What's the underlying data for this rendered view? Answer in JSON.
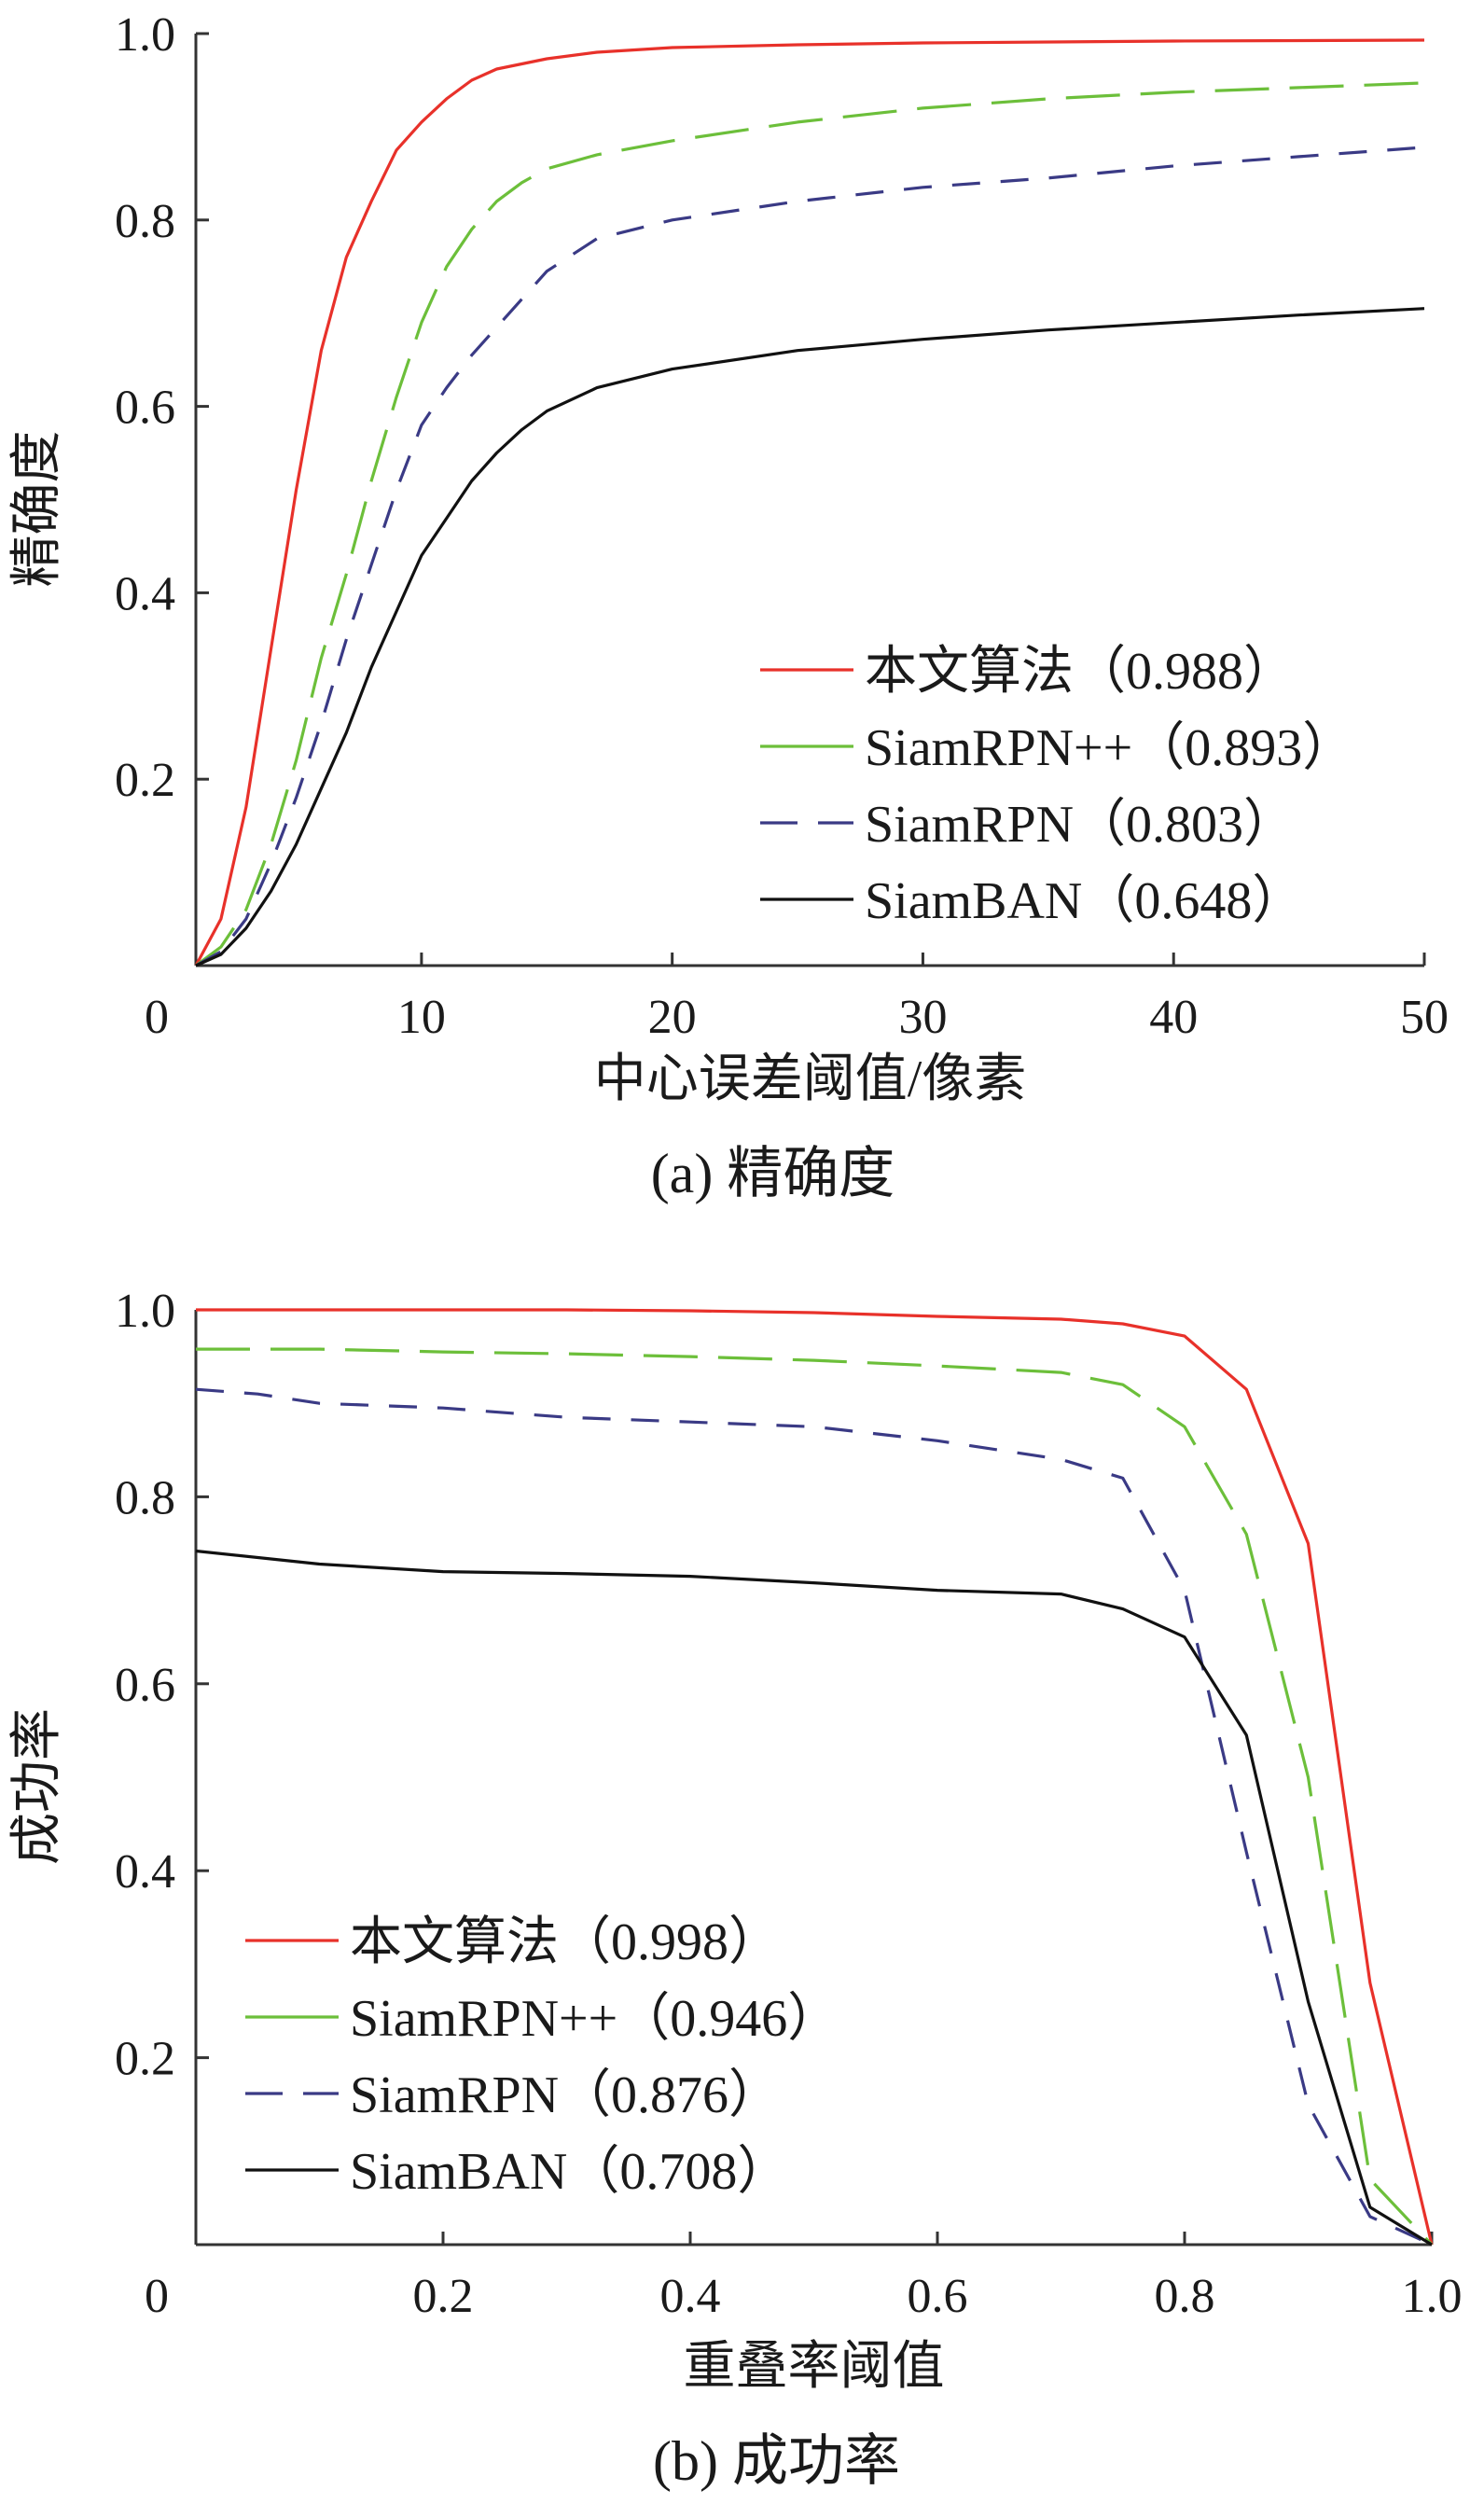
{
  "chart_data": [
    {
      "type": "line",
      "caption": "(a)  精确度",
      "xlabel": "中心误差阈值/像素",
      "ylabel": "精确度",
      "xlim": [
        1,
        50
      ],
      "ylim": [
        0,
        1.0
      ],
      "x_ticks": [
        0,
        10,
        20,
        30,
        40,
        50
      ],
      "x_tick_labels": [
        "0",
        "10",
        "20",
        "30",
        "40",
        "50"
      ],
      "y_ticks": [
        0.2,
        0.4,
        0.6,
        0.8,
        1.0
      ],
      "y_tick_labels": [
        "0.2",
        "0.4",
        "0.6",
        "0.8",
        "1.0"
      ],
      "legend_position": "lower-right",
      "grid": false,
      "series": [
        {
          "name": "本文算法（0.988）",
          "color": "#e8312a",
          "dash": "solid",
          "points": [
            [
              1,
              0.0
            ],
            [
              2,
              0.05
            ],
            [
              3,
              0.17
            ],
            [
              4,
              0.34
            ],
            [
              5,
              0.51
            ],
            [
              6,
              0.66
            ],
            [
              7,
              0.76
            ],
            [
              8,
              0.82
            ],
            [
              9,
              0.875
            ],
            [
              10,
              0.905
            ],
            [
              11,
              0.93
            ],
            [
              12,
              0.95
            ],
            [
              13,
              0.962
            ],
            [
              15,
              0.973
            ],
            [
              17,
              0.98
            ],
            [
              20,
              0.985
            ],
            [
              25,
              0.988
            ],
            [
              30,
              0.99
            ],
            [
              40,
              0.992
            ],
            [
              50,
              0.993
            ]
          ]
        },
        {
          "name": "SiamRPN++（0.893）",
          "color": "#6cbf3a",
          "dash": "long",
          "points": [
            [
              1,
              0.0
            ],
            [
              2,
              0.02
            ],
            [
              3,
              0.06
            ],
            [
              4,
              0.13
            ],
            [
              5,
              0.22
            ],
            [
              6,
              0.33
            ],
            [
              7,
              0.42
            ],
            [
              8,
              0.52
            ],
            [
              9,
              0.61
            ],
            [
              10,
              0.69
            ],
            [
              11,
              0.75
            ],
            [
              12,
              0.79
            ],
            [
              13,
              0.82
            ],
            [
              14,
              0.84
            ],
            [
              15,
              0.855
            ],
            [
              17,
              0.87
            ],
            [
              20,
              0.885
            ],
            [
              25,
              0.905
            ],
            [
              30,
              0.92
            ],
            [
              35,
              0.93
            ],
            [
              40,
              0.937
            ],
            [
              45,
              0.942
            ],
            [
              50,
              0.947
            ]
          ]
        },
        {
          "name": "SiamRPN（0.803）",
          "color": "#3a3a85",
          "dash": "short",
          "points": [
            [
              1,
              0.0
            ],
            [
              2,
              0.015
            ],
            [
              3,
              0.05
            ],
            [
              4,
              0.11
            ],
            [
              5,
              0.18
            ],
            [
              6,
              0.26
            ],
            [
              7,
              0.35
            ],
            [
              8,
              0.43
            ],
            [
              9,
              0.51
            ],
            [
              10,
              0.58
            ],
            [
              11,
              0.62
            ],
            [
              12,
              0.655
            ],
            [
              13,
              0.685
            ],
            [
              14,
              0.715
            ],
            [
              15,
              0.745
            ],
            [
              17,
              0.78
            ],
            [
              20,
              0.8
            ],
            [
              25,
              0.82
            ],
            [
              30,
              0.835
            ],
            [
              35,
              0.845
            ],
            [
              40,
              0.858
            ],
            [
              45,
              0.868
            ],
            [
              50,
              0.878
            ]
          ]
        },
        {
          "name": "SiamBAN（0.648）",
          "color": "#111111",
          "dash": "solid",
          "points": [
            [
              1,
              0.0
            ],
            [
              2,
              0.012
            ],
            [
              3,
              0.04
            ],
            [
              4,
              0.08
            ],
            [
              5,
              0.13
            ],
            [
              6,
              0.19
            ],
            [
              7,
              0.25
            ],
            [
              8,
              0.32
            ],
            [
              9,
              0.38
            ],
            [
              10,
              0.44
            ],
            [
              11,
              0.48
            ],
            [
              12,
              0.52
            ],
            [
              13,
              0.55
            ],
            [
              14,
              0.575
            ],
            [
              15,
              0.595
            ],
            [
              17,
              0.62
            ],
            [
              20,
              0.64
            ],
            [
              25,
              0.66
            ],
            [
              30,
              0.672
            ],
            [
              35,
              0.682
            ],
            [
              40,
              0.69
            ],
            [
              45,
              0.698
            ],
            [
              50,
              0.705
            ]
          ]
        }
      ]
    },
    {
      "type": "line",
      "caption": "(b)  成功率",
      "xlabel": "重叠率阈值",
      "ylabel": "成功率",
      "xlim": [
        0,
        1.0
      ],
      "ylim": [
        0,
        1.0
      ],
      "x_ticks": [
        0,
        0.2,
        0.4,
        0.6,
        0.8,
        1.0
      ],
      "x_tick_labels": [
        "0",
        "0.2",
        "0.4",
        "0.6",
        "0.8",
        "1.0"
      ],
      "y_ticks": [
        0.2,
        0.4,
        0.6,
        0.8,
        1.0
      ],
      "y_tick_labels": [
        "0.2",
        "0.4",
        "0.6",
        "0.8",
        "1.0"
      ],
      "legend_position": "lower-left",
      "grid": false,
      "series": [
        {
          "name": "本文算法（0.998）",
          "color": "#e8312a",
          "dash": "solid",
          "points": [
            [
              0,
              1.0
            ],
            [
              0.1,
              1.0
            ],
            [
              0.2,
              1.0
            ],
            [
              0.3,
              1.0
            ],
            [
              0.4,
              0.999
            ],
            [
              0.5,
              0.997
            ],
            [
              0.6,
              0.993
            ],
            [
              0.7,
              0.99
            ],
            [
              0.75,
              0.985
            ],
            [
              0.8,
              0.972
            ],
            [
              0.85,
              0.915
            ],
            [
              0.9,
              0.75
            ],
            [
              0.95,
              0.28
            ],
            [
              1.0,
              0.0
            ]
          ]
        },
        {
          "name": "SiamRPN++（0.946）",
          "color": "#6cbf3a",
          "dash": "long",
          "points": [
            [
              0,
              0.958
            ],
            [
              0.1,
              0.958
            ],
            [
              0.2,
              0.955
            ],
            [
              0.3,
              0.953
            ],
            [
              0.4,
              0.95
            ],
            [
              0.5,
              0.946
            ],
            [
              0.6,
              0.94
            ],
            [
              0.7,
              0.933
            ],
            [
              0.75,
              0.92
            ],
            [
              0.8,
              0.875
            ],
            [
              0.85,
              0.76
            ],
            [
              0.9,
              0.5
            ],
            [
              0.95,
              0.07
            ],
            [
              1.0,
              0.0
            ]
          ]
        },
        {
          "name": "SiamRPN（0.876）",
          "color": "#3a3a85",
          "dash": "short",
          "points": [
            [
              0,
              0.915
            ],
            [
              0.05,
              0.91
            ],
            [
              0.1,
              0.9
            ],
            [
              0.2,
              0.895
            ],
            [
              0.3,
              0.885
            ],
            [
              0.4,
              0.88
            ],
            [
              0.5,
              0.875
            ],
            [
              0.6,
              0.86
            ],
            [
              0.7,
              0.84
            ],
            [
              0.75,
              0.82
            ],
            [
              0.8,
              0.7
            ],
            [
              0.85,
              0.42
            ],
            [
              0.9,
              0.15
            ],
            [
              0.95,
              0.03
            ],
            [
              1.0,
              0.0
            ]
          ]
        },
        {
          "name": "SiamBAN（0.708）",
          "color": "#111111",
          "dash": "solid",
          "points": [
            [
              0,
              0.742
            ],
            [
              0.1,
              0.728
            ],
            [
              0.2,
              0.72
            ],
            [
              0.3,
              0.718
            ],
            [
              0.4,
              0.715
            ],
            [
              0.5,
              0.708
            ],
            [
              0.6,
              0.7
            ],
            [
              0.7,
              0.696
            ],
            [
              0.75,
              0.68
            ],
            [
              0.8,
              0.65
            ],
            [
              0.85,
              0.545
            ],
            [
              0.9,
              0.26
            ],
            [
              0.95,
              0.04
            ],
            [
              1.0,
              0.0
            ]
          ]
        }
      ]
    }
  ]
}
